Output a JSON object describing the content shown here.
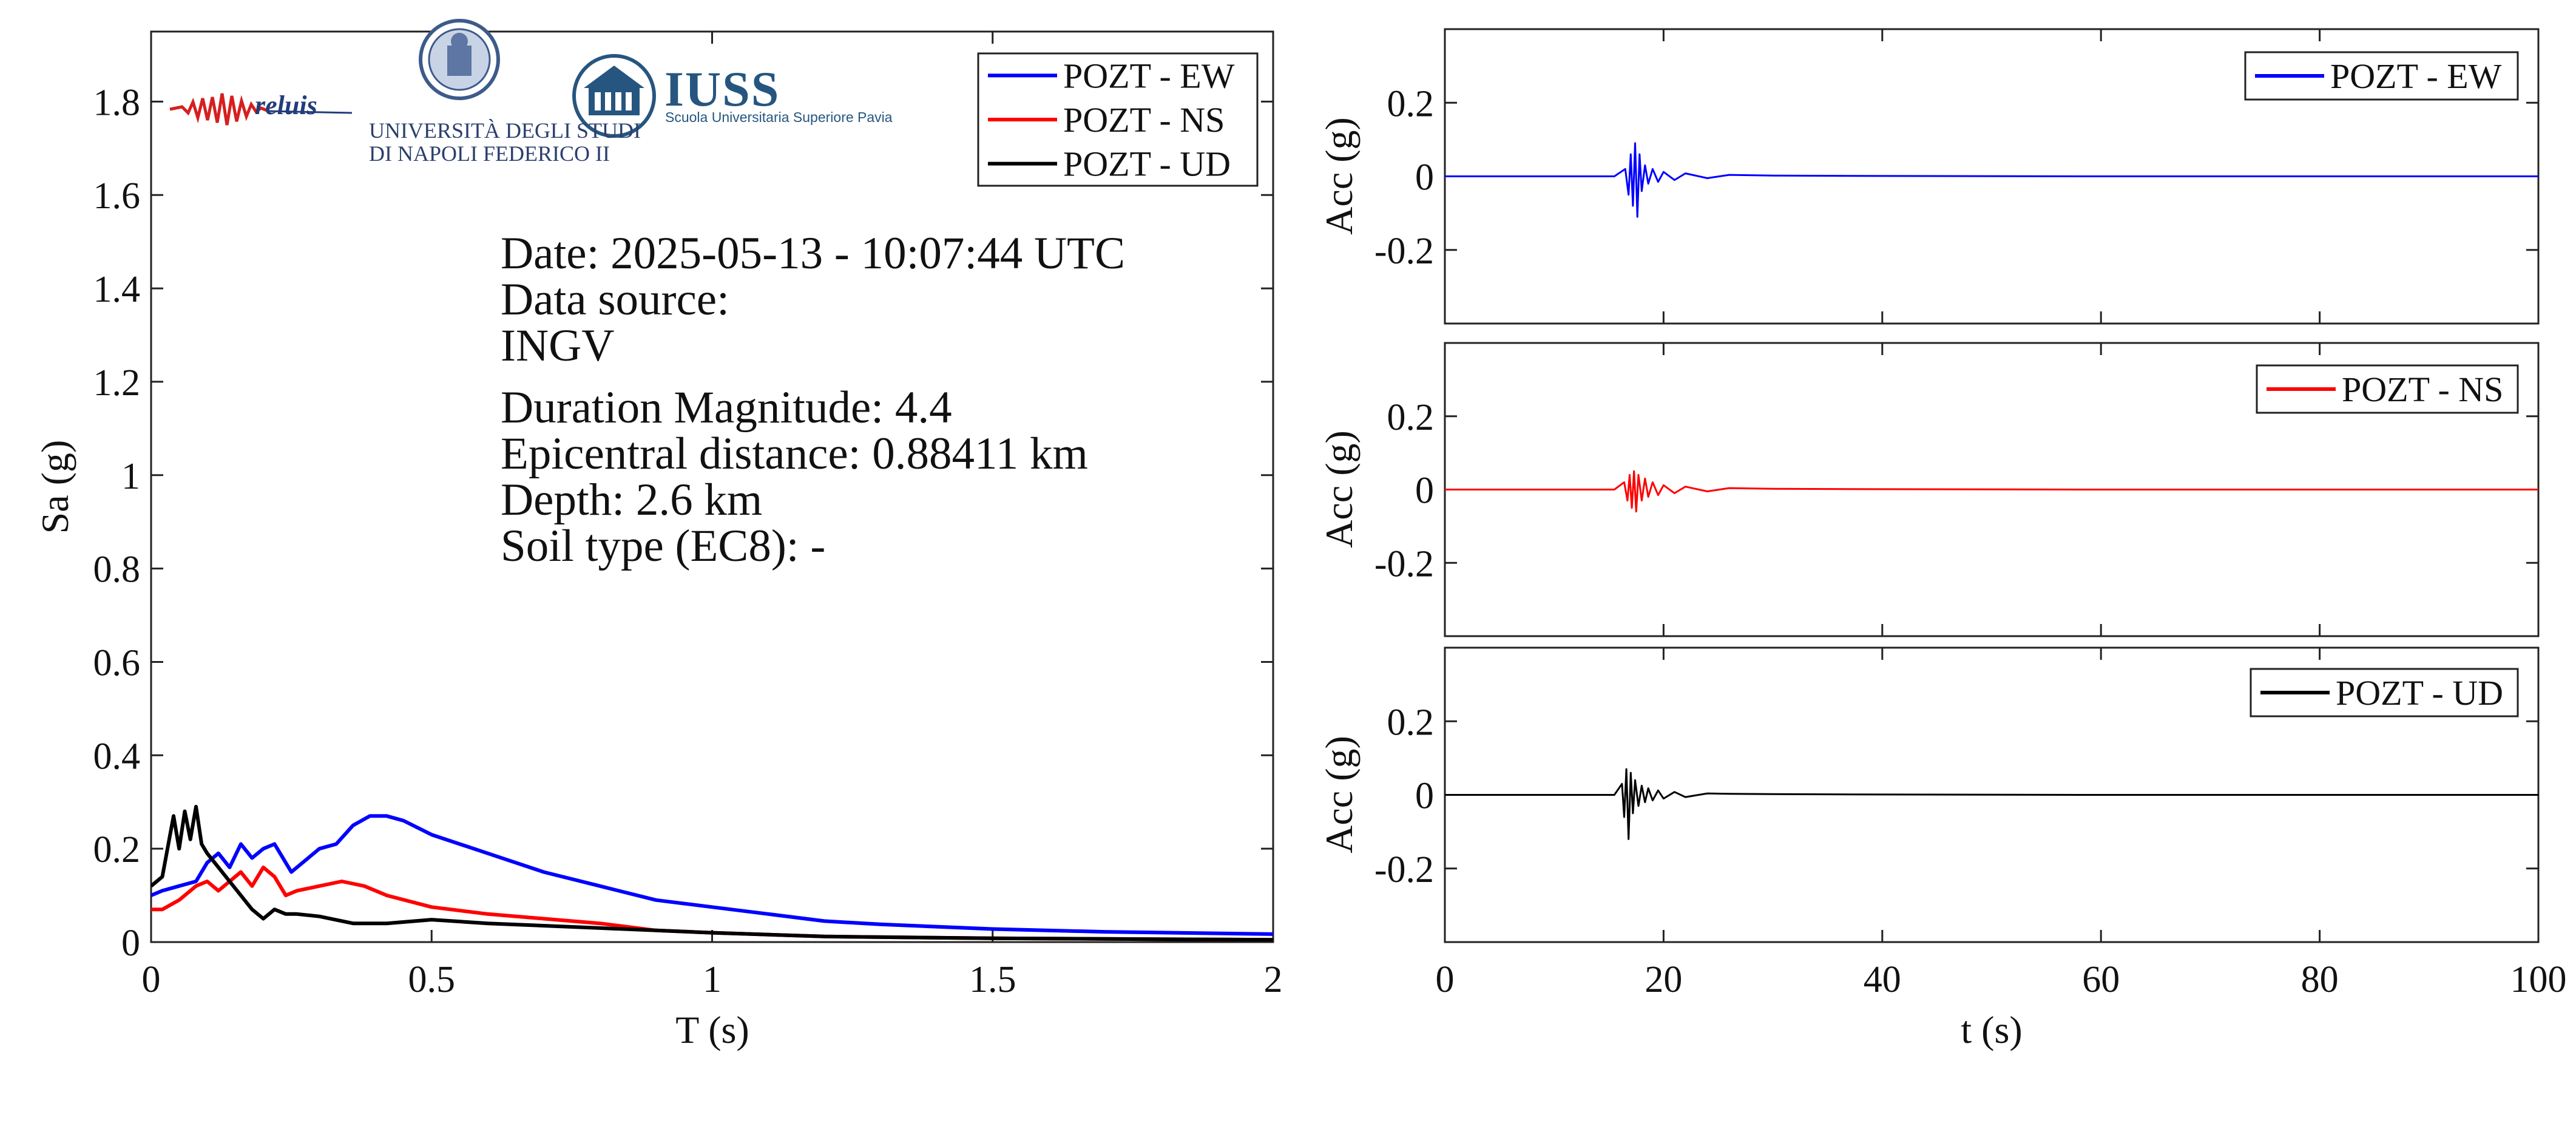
{
  "logos": {
    "reluis": "reluis",
    "unina_line1": "UNIVERSITÀ DEGLI STUDI",
    "unina_line2": "DI NAPOLI FEDERICO II",
    "iuss_title": "IUSS",
    "iuss_subtitle": "Scuola Universitaria Superiore Pavia"
  },
  "info": {
    "date": "Date: 2025-05-13 - 10:07:44 UTC",
    "source_label": "Data source:",
    "source_value": "INGV",
    "magnitude": "Duration Magnitude: 4.4",
    "distance": "Epicentral distance: 0.88411 km",
    "depth": "Depth: 2.6 km",
    "soil": "Soil type (EC8): -"
  },
  "colors": {
    "ew": "#0000ff",
    "ns": "#ff0000",
    "ud": "#000000"
  },
  "chart_data": [
    {
      "type": "line",
      "xlabel": "T (s)",
      "ylabel": "Sa (g)",
      "xlim": [
        0,
        2
      ],
      "ylim": [
        0,
        1.95
      ],
      "xticks": [
        0,
        0.5,
        1,
        1.5,
        2
      ],
      "xtick_labels": [
        "0",
        "0.5",
        "1",
        "1.5",
        "2"
      ],
      "yticks": [
        0,
        0.2,
        0.4,
        0.6,
        0.8,
        1,
        1.2,
        1.4,
        1.6,
        1.8
      ],
      "ytick_labels": [
        "0",
        "0.2",
        "0.4",
        "0.6",
        "0.8",
        "1",
        "1.2",
        "1.4",
        "1.6",
        "1.8"
      ],
      "legend": "top-right",
      "grid": false,
      "series": [
        {
          "name": "POZT - EW",
          "x": [
            0,
            0.02,
            0.05,
            0.08,
            0.1,
            0.12,
            0.14,
            0.16,
            0.18,
            0.2,
            0.22,
            0.25,
            0.28,
            0.3,
            0.33,
            0.36,
            0.39,
            0.42,
            0.45,
            0.5,
            0.6,
            0.7,
            0.8,
            0.9,
            1.0,
            1.1,
            1.2,
            1.3,
            1.5,
            1.7,
            2.0
          ],
          "y": [
            0.1,
            0.11,
            0.12,
            0.13,
            0.17,
            0.19,
            0.16,
            0.21,
            0.18,
            0.2,
            0.21,
            0.15,
            0.18,
            0.2,
            0.21,
            0.25,
            0.27,
            0.27,
            0.26,
            0.23,
            0.19,
            0.15,
            0.12,
            0.09,
            0.075,
            0.06,
            0.045,
            0.038,
            0.028,
            0.022,
            0.017
          ]
        },
        {
          "name": "POZT - NS",
          "x": [
            0,
            0.02,
            0.05,
            0.08,
            0.1,
            0.12,
            0.14,
            0.16,
            0.18,
            0.2,
            0.22,
            0.24,
            0.26,
            0.3,
            0.34,
            0.38,
            0.42,
            0.5,
            0.6,
            0.7,
            0.8,
            0.9,
            1.0,
            1.2,
            1.5,
            2.0
          ],
          "y": [
            0.07,
            0.07,
            0.09,
            0.12,
            0.13,
            0.11,
            0.13,
            0.15,
            0.12,
            0.16,
            0.14,
            0.1,
            0.11,
            0.12,
            0.13,
            0.12,
            0.1,
            0.075,
            0.06,
            0.05,
            0.04,
            0.025,
            0.02,
            0.012,
            0.008,
            0.005
          ]
        },
        {
          "name": "POZT - UD",
          "x": [
            0,
            0.02,
            0.04,
            0.05,
            0.06,
            0.07,
            0.08,
            0.09,
            0.1,
            0.12,
            0.14,
            0.16,
            0.18,
            0.2,
            0.22,
            0.24,
            0.26,
            0.3,
            0.36,
            0.42,
            0.5,
            0.6,
            0.8,
            1.0,
            1.2,
            1.5,
            2.0
          ],
          "y": [
            0.12,
            0.14,
            0.27,
            0.2,
            0.28,
            0.22,
            0.29,
            0.21,
            0.19,
            0.16,
            0.13,
            0.1,
            0.07,
            0.05,
            0.07,
            0.06,
            0.06,
            0.055,
            0.04,
            0.04,
            0.048,
            0.04,
            0.03,
            0.02,
            0.012,
            0.008,
            0.005
          ]
        }
      ]
    },
    {
      "type": "line",
      "xlabel": "",
      "ylabel": "Acc (g)",
      "xlim": [
        0,
        100
      ],
      "ylim": [
        -0.4,
        0.4
      ],
      "yticks": [
        -0.2,
        0,
        0.2
      ],
      "ytick_labels": [
        "-0.2",
        "0",
        "0.2"
      ],
      "legend": "top-right",
      "series": [
        {
          "name": "POZT - EW",
          "x": [
            0,
            15.5,
            16.5,
            16.8,
            17.0,
            17.2,
            17.4,
            17.6,
            17.8,
            18.0,
            18.3,
            18.6,
            19.0,
            19.5,
            20.0,
            21.0,
            22.0,
            24.0,
            26.0,
            30.0,
            40.0,
            60.0,
            80.0,
            100.0
          ],
          "y": [
            0,
            0,
            0.02,
            -0.05,
            0.06,
            -0.08,
            0.09,
            -0.11,
            0.06,
            -0.04,
            0.03,
            -0.02,
            0.02,
            -0.015,
            0.012,
            -0.01,
            0.008,
            -0.005,
            0.004,
            0.002,
            0.001,
            0,
            0,
            0
          ]
        }
      ]
    },
    {
      "type": "line",
      "xlabel": "",
      "ylabel": "Acc (g)",
      "xlim": [
        0,
        100
      ],
      "ylim": [
        -0.4,
        0.4
      ],
      "yticks": [
        -0.2,
        0,
        0.2
      ],
      "ytick_labels": [
        "-0.2",
        "0",
        "0.2"
      ],
      "legend": "top-right",
      "series": [
        {
          "name": "POZT - NS",
          "x": [
            0,
            15.5,
            16.4,
            16.7,
            16.9,
            17.1,
            17.3,
            17.5,
            17.7,
            18.0,
            18.3,
            18.6,
            19.0,
            19.5,
            20.0,
            21.0,
            22.0,
            24.0,
            26.0,
            30.0,
            40.0,
            60.0,
            80.0,
            100.0
          ],
          "y": [
            0,
            0,
            0.02,
            -0.03,
            0.04,
            -0.05,
            0.05,
            -0.06,
            0.04,
            -0.03,
            0.03,
            -0.02,
            0.02,
            -0.015,
            0.012,
            -0.01,
            0.008,
            -0.005,
            0.004,
            0.002,
            0.001,
            0,
            0,
            0
          ]
        }
      ]
    },
    {
      "type": "line",
      "xlabel": "t (s)",
      "ylabel": "Acc (g)",
      "xlim": [
        0,
        100
      ],
      "ylim": [
        -0.4,
        0.4
      ],
      "xticks": [
        0,
        20,
        40,
        60,
        80,
        100
      ],
      "xtick_labels": [
        "0",
        "20",
        "40",
        "60",
        "80",
        "100"
      ],
      "yticks": [
        -0.2,
        0,
        0.2
      ],
      "ytick_labels": [
        "-0.2",
        "0",
        "0.2"
      ],
      "legend": "top-right",
      "series": [
        {
          "name": "POZT - UD",
          "x": [
            0,
            15.5,
            16.2,
            16.4,
            16.6,
            16.8,
            17.0,
            17.2,
            17.4,
            17.7,
            18.0,
            18.3,
            18.6,
            19.0,
            19.5,
            20.0,
            21.0,
            22.0,
            24.0,
            26.0,
            30.0,
            40.0,
            60.0,
            80.0,
            100.0
          ],
          "y": [
            0,
            0,
            0.03,
            -0.06,
            0.07,
            -0.12,
            0.06,
            -0.05,
            0.04,
            -0.03,
            0.025,
            -0.02,
            0.018,
            -0.015,
            0.012,
            -0.01,
            0.008,
            -0.006,
            0.004,
            0.003,
            0.002,
            0.001,
            0,
            0,
            0
          ]
        }
      ]
    }
  ]
}
